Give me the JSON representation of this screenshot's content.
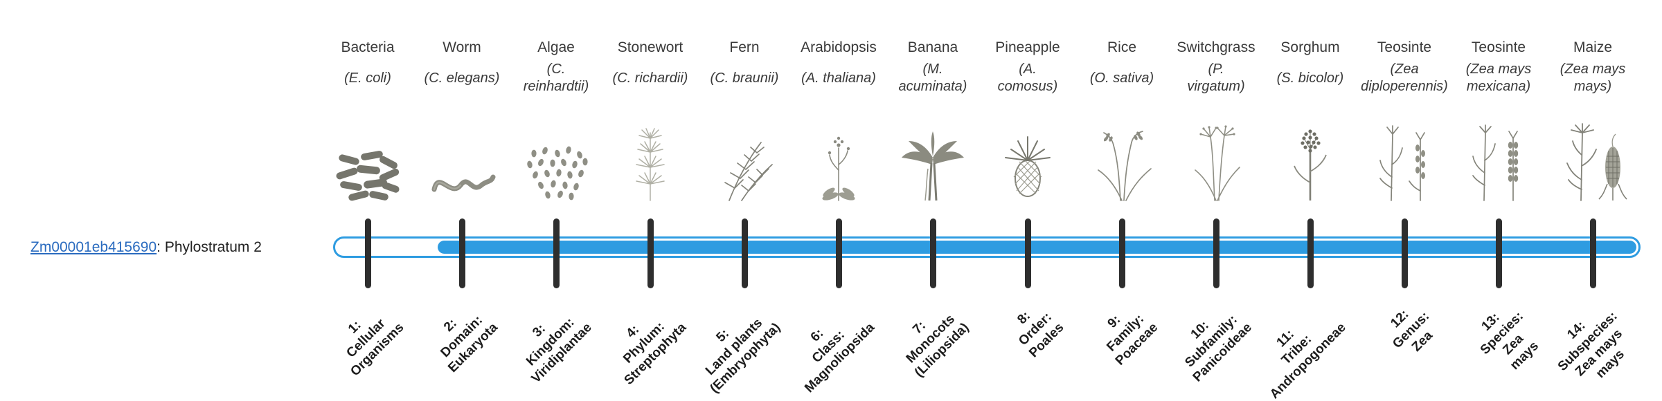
{
  "gene": {
    "id": "Zm00001eb415690",
    "suffix": ": Phylostratum 2",
    "phylostratum": 2
  },
  "colors": {
    "bar": "#2e9ce1",
    "bar_track": "#ffffff",
    "tick": "#2e2e2e",
    "link": "#2a6bbf",
    "text": "#3a3a3a",
    "label_text": "#1c1c1c"
  },
  "organisms": [
    {
      "name": "Bacteria",
      "sci_lines": [
        "(E. coli)"
      ],
      "icon": "bacteria-icon"
    },
    {
      "name": "Worm",
      "sci_lines": [
        "(C. elegans)"
      ],
      "icon": "worm-icon"
    },
    {
      "name": "Algae",
      "sci_lines": [
        "(C.",
        "reinhardtii)"
      ],
      "icon": "algae-icon"
    },
    {
      "name": "Stonewort",
      "sci_lines": [
        "(C. richardii)"
      ],
      "icon": "stonewort-icon"
    },
    {
      "name": "Fern",
      "sci_lines": [
        "(C. braunii)"
      ],
      "icon": "fern-icon"
    },
    {
      "name": "Arabidopsis",
      "sci_lines": [
        "(A. thaliana)"
      ],
      "icon": "arabidopsis-icon"
    },
    {
      "name": "Banana",
      "sci_lines": [
        "(M.",
        "acuminata)"
      ],
      "icon": "banana-icon"
    },
    {
      "name": "Pineapple",
      "sci_lines": [
        "(A.",
        "comosus)"
      ],
      "icon": "pineapple-icon"
    },
    {
      "name": "Rice",
      "sci_lines": [
        "(O. sativa)"
      ],
      "icon": "rice-icon"
    },
    {
      "name": "Switchgrass",
      "sci_lines": [
        "(P.",
        "virgatum)"
      ],
      "icon": "switchgrass-icon"
    },
    {
      "name": "Sorghum",
      "sci_lines": [
        "(S. bicolor)"
      ],
      "icon": "sorghum-icon"
    },
    {
      "name": "Teosinte",
      "sci_lines": [
        "(Zea",
        "diploperennis)"
      ],
      "icon": "teosinte-diploperennis-icon"
    },
    {
      "name": "Teosinte",
      "sci_lines": [
        "(Zea mays",
        "mexicana)"
      ],
      "icon": "teosinte-mexicana-icon"
    },
    {
      "name": "Maize",
      "sci_lines": [
        "(Zea mays",
        "mays)"
      ],
      "icon": "maize-icon"
    }
  ],
  "strata": [
    {
      "lines": [
        "1:",
        "Cellular",
        "Organisms"
      ]
    },
    {
      "lines": [
        "2:",
        "Domain:",
        "Eukaryota"
      ]
    },
    {
      "lines": [
        "3:",
        "Kingdom:",
        "Viridiplantae"
      ]
    },
    {
      "lines": [
        "4:",
        "Phylum:",
        "Streptophyta"
      ]
    },
    {
      "lines": [
        "5:",
        "Land plants",
        "(Embryophyta)"
      ]
    },
    {
      "lines": [
        "6:",
        "Class:",
        "Magnoliopsida"
      ]
    },
    {
      "lines": [
        "7:",
        "Monocots",
        "(Liliopsida)"
      ]
    },
    {
      "lines": [
        "8:",
        "Order:",
        "Poales"
      ]
    },
    {
      "lines": [
        "9:",
        "Family:",
        "Poaceae"
      ]
    },
    {
      "lines": [
        "10:",
        "Subfamily:",
        "Panicoideae"
      ]
    },
    {
      "lines": [
        "11:",
        "Tribe:",
        "Andropogoneae"
      ]
    },
    {
      "lines": [
        "12:",
        "Genus:",
        "Zea"
      ]
    },
    {
      "lines": [
        "13:",
        "Species:",
        "Zea",
        "mays"
      ]
    },
    {
      "lines": [
        "14:",
        "Subspecies:",
        "Zea mays",
        "mays"
      ]
    }
  ]
}
